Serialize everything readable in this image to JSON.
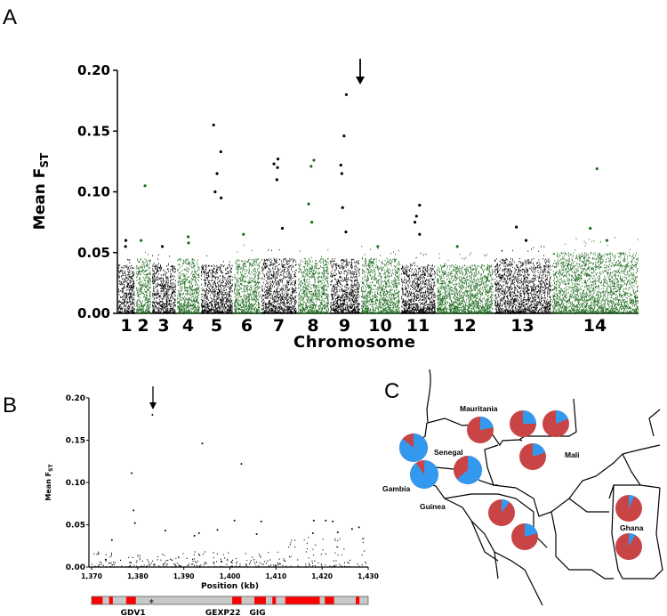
{
  "colors": {
    "green": "#1d6a1d",
    "black": "#000000",
    "blue": "#3399ee",
    "red": "#c94444",
    "gene_red": "#ff0000",
    "gene_gray": "#c8c8c8"
  },
  "chart_data": [
    {
      "panel": "A",
      "type": "scatter",
      "title": "",
      "xlabel": "Chromosome",
      "ylabel": "Mean F",
      "ylabel_sub": "ST",
      "ylim": [
        0,
        0.2
      ],
      "yticks": [
        "0.00",
        "0.05",
        "0.10",
        "0.15",
        "0.20"
      ],
      "chromosomes": [
        "1",
        "2",
        "3",
        "4",
        "5",
        "6",
        "7",
        "8",
        "9",
        "10",
        "11",
        "12",
        "13",
        "14"
      ],
      "baseline_max": [
        0.04,
        0.045,
        0.04,
        0.045,
        0.04,
        0.045,
        0.045,
        0.045,
        0.045,
        0.045,
        0.04,
        0.04,
        0.045,
        0.05
      ],
      "outliers": [
        [
          1,
          0.055
        ],
        [
          1,
          0.06
        ],
        [
          2,
          0.06
        ],
        [
          2,
          0.105
        ],
        [
          3,
          0.055
        ],
        [
          4,
          0.063
        ],
        [
          4,
          0.058
        ],
        [
          5,
          0.155
        ],
        [
          5,
          0.133
        ],
        [
          5,
          0.115
        ],
        [
          5,
          0.1
        ],
        [
          5,
          0.095
        ],
        [
          6,
          0.065
        ],
        [
          7,
          0.127
        ],
        [
          7,
          0.123
        ],
        [
          7,
          0.12
        ],
        [
          7,
          0.11
        ],
        [
          7,
          0.07
        ],
        [
          8,
          0.126
        ],
        [
          8,
          0.121
        ],
        [
          8,
          0.09
        ],
        [
          8,
          0.075
        ],
        [
          9,
          0.18
        ],
        [
          9,
          0.146
        ],
        [
          9,
          0.122
        ],
        [
          9,
          0.115
        ],
        [
          9,
          0.087
        ],
        [
          9,
          0.067
        ],
        [
          10,
          0.055
        ],
        [
          11,
          0.089
        ],
        [
          11,
          0.08
        ],
        [
          11,
          0.075
        ],
        [
          11,
          0.065
        ],
        [
          12,
          0.055
        ],
        [
          13,
          0.071
        ],
        [
          13,
          0.06
        ],
        [
          14,
          0.119
        ],
        [
          14,
          0.07
        ],
        [
          14,
          0.06
        ]
      ],
      "annotation": "arrow at chromosome 9 peak (0.18)"
    },
    {
      "panel": "B",
      "type": "scatter",
      "xlabel": "Position (kb)",
      "ylabel": "Mean F",
      "ylabel_sub": "ST",
      "xlim": [
        1370,
        1430
      ],
      "ylim": [
        0,
        0.2
      ],
      "xticks": [
        "1,370",
        "1,380",
        "1,390",
        "1,400",
        "1,410",
        "1,420",
        "1,430"
      ],
      "yticks": [
        "0.00",
        "0.05",
        "0.10",
        "0.15",
        "0.20"
      ],
      "outliers": [
        [
          1383.2,
          0.18
        ],
        [
          1394,
          0.146
        ],
        [
          1402.5,
          0.122
        ],
        [
          1378.7,
          0.111
        ],
        [
          1379.1,
          0.067
        ],
        [
          1379.4,
          0.052
        ],
        [
          1401,
          0.055
        ],
        [
          1406.8,
          0.054
        ],
        [
          1418.2,
          0.055
        ],
        [
          1420.8,
          0.055
        ],
        [
          1422.3,
          0.054
        ],
        [
          1428,
          0.047
        ],
        [
          1426.5,
          0.045
        ],
        [
          1386,
          0.043
        ],
        [
          1397.3,
          0.044
        ],
        [
          1374.4,
          0.032
        ],
        [
          1392.3,
          0.037
        ],
        [
          1393.3,
          0.04
        ],
        [
          1405.8,
          0.039
        ],
        [
          1423.4,
          0.041
        ],
        [
          1418,
          0.04
        ]
      ],
      "annotation": "arrow at 1,383 kb (0.18)",
      "genes": {
        "segments_kb": [
          [
            1370,
            1372.4
          ],
          [
            1373.8,
            1374.6
          ],
          [
            1377.5,
            1379.6
          ],
          [
            1400.5,
            1402.5
          ],
          [
            1405.3,
            1407.8
          ],
          [
            1409.2,
            1410
          ],
          [
            1412,
            1419.5
          ],
          [
            1420.6,
            1422.6
          ],
          [
            1427.3,
            1428.1
          ]
        ],
        "labels": [
          {
            "text": "GDV1",
            "kb": 1379
          },
          {
            "text": "GEXP22",
            "kb": 1398.5
          },
          {
            "text": "GIG",
            "kb": 1406
          }
        ],
        "marker": "*",
        "marker_kb": 1383
      }
    }
  ],
  "panels": {
    "a": "A",
    "b": "B",
    "c": "C"
  },
  "map": {
    "labels": [
      "Mauritania",
      "Senegal",
      "Mali",
      "Gambia",
      "Guinea",
      "Ghana"
    ],
    "pies": [
      {
        "country": "Mauritania",
        "blue_fraction": 0.22
      },
      {
        "country": "Mauritania",
        "blue_fraction": 0.25
      },
      {
        "country": "Mauritania",
        "blue_fraction": 0.19
      },
      {
        "country": "Mali",
        "blue_fraction": 0.2
      },
      {
        "country": "Senegal",
        "blue_fraction": 0.86
      },
      {
        "country": "Gambia",
        "blue_fraction": 0.9
      },
      {
        "country": "Senegal",
        "blue_fraction": 0.64
      },
      {
        "country": "Guinea",
        "blue_fraction": 0.1
      },
      {
        "country": "Guinea",
        "blue_fraction": 0.21
      },
      {
        "country": "Ghana",
        "blue_fraction": 0.07
      },
      {
        "country": "Ghana",
        "blue_fraction": 0.08
      }
    ]
  }
}
